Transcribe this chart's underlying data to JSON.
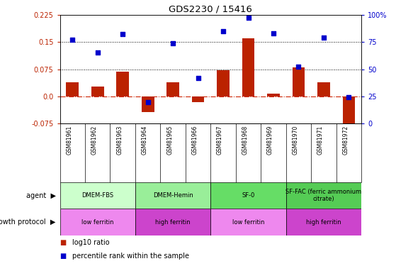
{
  "title": "GDS2230 / 15416",
  "samples": [
    "GSM81961",
    "GSM81962",
    "GSM81963",
    "GSM81964",
    "GSM81965",
    "GSM81966",
    "GSM81967",
    "GSM81968",
    "GSM81969",
    "GSM81970",
    "GSM81971",
    "GSM81972"
  ],
  "log10_ratio": [
    0.038,
    0.028,
    0.068,
    -0.044,
    0.038,
    -0.015,
    0.072,
    0.16,
    0.008,
    0.08,
    0.038,
    -0.095
  ],
  "percentile_rank": [
    77,
    65,
    82,
    20,
    74,
    42,
    85,
    97,
    83,
    52,
    79,
    24
  ],
  "ylim_left": [
    -0.075,
    0.225
  ],
  "ylim_right": [
    0,
    100
  ],
  "yticks_left": [
    -0.075,
    0.0,
    0.075,
    0.15,
    0.225
  ],
  "yticks_right": [
    0,
    25,
    50,
    75,
    100
  ],
  "hlines": [
    0.075,
    0.15
  ],
  "bar_color": "#bb2200",
  "dot_color": "#0000cc",
  "zero_line_color": "#cc2200",
  "agent_groups": [
    {
      "label": "DMEM-FBS",
      "start": 0,
      "end": 3,
      "color": "#ccffcc"
    },
    {
      "label": "DMEM-Hemin",
      "start": 3,
      "end": 6,
      "color": "#99ee99"
    },
    {
      "label": "SF-0",
      "start": 6,
      "end": 9,
      "color": "#66dd66"
    },
    {
      "label": "SF-FAC (ferric ammonium\ncitrate)",
      "start": 9,
      "end": 12,
      "color": "#55cc55"
    }
  ],
  "protocol_groups": [
    {
      "label": "low ferritin",
      "start": 0,
      "end": 3,
      "color": "#ee88ee"
    },
    {
      "label": "high ferritin",
      "start": 3,
      "end": 6,
      "color": "#cc44cc"
    },
    {
      "label": "low ferritin",
      "start": 6,
      "end": 9,
      "color": "#ee88ee"
    },
    {
      "label": "high ferritin",
      "start": 9,
      "end": 12,
      "color": "#cc44cc"
    }
  ],
  "agent_label": "agent",
  "protocol_label": "growth protocol",
  "legend_bar_label": "log10 ratio",
  "legend_dot_label": "percentile rank within the sample",
  "xlabels_bg": "#cccccc"
}
